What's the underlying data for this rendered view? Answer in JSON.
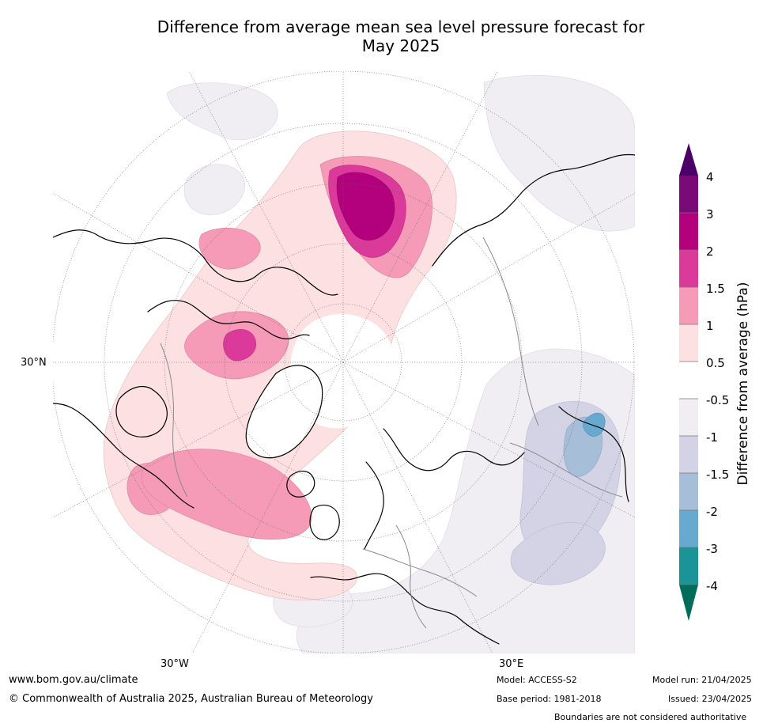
{
  "title": {
    "line1": "Difference from average mean sea level pressure forecast for",
    "line2": "May 2025"
  },
  "map": {
    "projection": "north polar stereographic",
    "labels": {
      "lat_30n": "30°N",
      "lon_30w": "30°W",
      "lon_30e": "30°E"
    }
  },
  "legend": {
    "title": "Difference from average (hPa)",
    "levels": [
      "4",
      "3",
      "2",
      "1.5",
      "1",
      "0.5",
      "-0.5",
      "-1",
      "-1.5",
      "-2",
      "-3",
      "-4"
    ],
    "colors": {
      "above_4": "#4a0068",
      "3_to_4": "#7a0a78",
      "2_to_3": "#b3007c",
      "1.5_to_2": "#dc3a9b",
      "1_to_1.5": "#f59bb7",
      "0.5_to_1": "#fde0e2",
      "neutral": "#ffffff",
      "-0.5_to_-1": "#f0eef3",
      "-1_to_-1.5": "#d3d3e5",
      "-1.5_to_-2": "#a7bed9",
      "-2_to_-3": "#67a9cf",
      "-3_to_-4": "#1b9497",
      "below_-4": "#006d5b"
    }
  },
  "footer": {
    "website": "www.bom.gov.au/climate",
    "copyright": "© Commonwealth of Australia 2025, Australian Bureau of Meteorology",
    "model": "Model: ACCESS-S2",
    "base_period": "Base period: 1981-2018",
    "model_run": "Model run: 21/04/2025",
    "issued": "Issued: 23/04/2025",
    "boundaries_note": "Boundaries are not considered authoritative"
  }
}
